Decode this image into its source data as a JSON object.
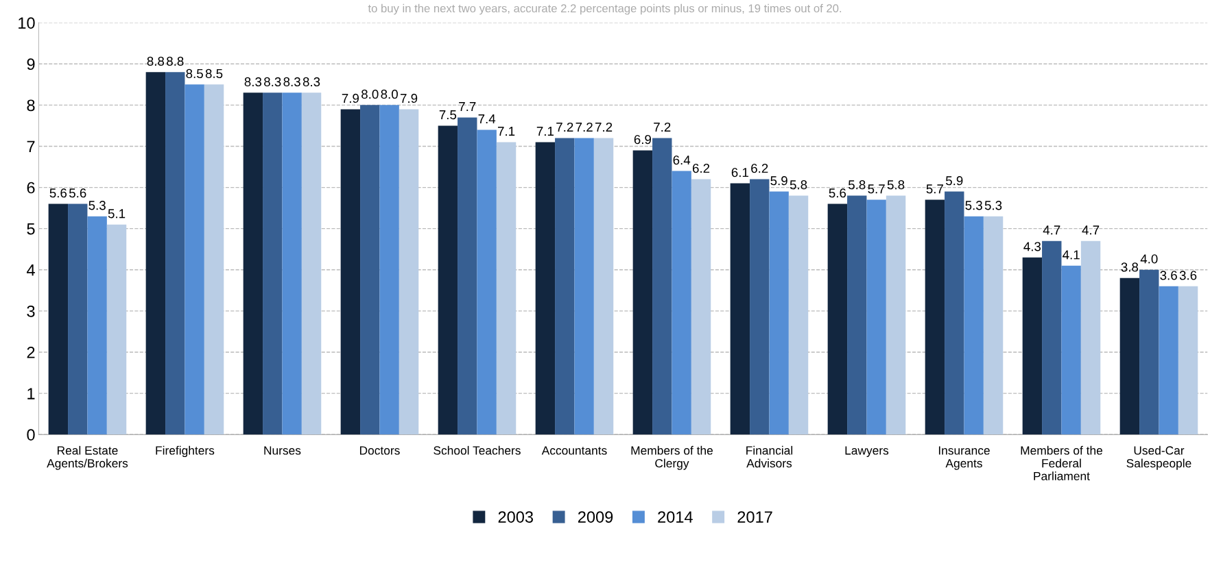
{
  "chart_data": {
    "type": "bar",
    "categories": [
      "Real Estate\nAgents/Brokers",
      "Firefighters",
      "Nurses",
      "Doctors",
      "School Teachers",
      "Accountants",
      "Members of the\nClergy",
      "Financial\nAdvisors",
      "Lawyers",
      "Insurance\nAgents",
      "Members of the\nFederal\nParliament",
      "Used-Car\nSalespeople"
    ],
    "series": [
      {
        "name": "2003",
        "color": "#12263f",
        "values": [
          5.6,
          8.8,
          8.3,
          7.9,
          7.5,
          7.1,
          6.9,
          6.1,
          5.6,
          5.7,
          4.3,
          3.8
        ],
        "value_labels": [
          "5.6",
          "8.8",
          "8.3",
          "7.9",
          "7.5",
          "7.1",
          "6.9",
          "6.1",
          "5.6",
          "5.7",
          "4.3",
          "3.8"
        ]
      },
      {
        "name": "2009",
        "color": "#375f92",
        "values": [
          5.6,
          8.8,
          8.3,
          8.0,
          7.7,
          7.2,
          7.2,
          6.2,
          5.8,
          5.9,
          4.7,
          4.0
        ],
        "value_labels": [
          "5.6",
          "8.8",
          "8.3",
          "8.0",
          "7.7",
          "7.2",
          "7.2",
          "6.2",
          "5.8",
          "5.9",
          "4.7",
          "4.0"
        ]
      },
      {
        "name": "2014",
        "color": "#558ed5",
        "values": [
          5.3,
          8.5,
          8.3,
          8.0,
          7.4,
          7.2,
          6.4,
          5.9,
          5.7,
          5.3,
          4.1,
          3.6
        ],
        "value_labels": [
          "5.3",
          "8.5",
          "8.3",
          "8.0",
          "7.4",
          "7.2",
          "6.4",
          "5.9",
          "5.7",
          "5.3",
          "4.1",
          "3.6"
        ]
      },
      {
        "name": "2017",
        "color": "#b9cde5",
        "values": [
          5.1,
          8.5,
          8.3,
          7.9,
          7.1,
          7.2,
          6.2,
          5.8,
          5.8,
          5.3,
          4.7,
          3.6
        ],
        "value_labels": [
          "5.1",
          "8.5",
          "8.3",
          "7.9",
          "7.1",
          "7.2",
          "6.2",
          "5.8",
          "5.8",
          "5.3",
          "4.7",
          "3.6"
        ]
      }
    ],
    "ylim": [
      0,
      10
    ],
    "yticks": [
      0,
      1,
      2,
      3,
      4,
      5,
      6,
      7,
      8,
      9,
      10
    ],
    "grid": "y",
    "legend": "bottom",
    "annotations": [
      "to buy in the next two years, accurate 2.2 percentage points plus or minus, 19 times out of 20."
    ]
  }
}
